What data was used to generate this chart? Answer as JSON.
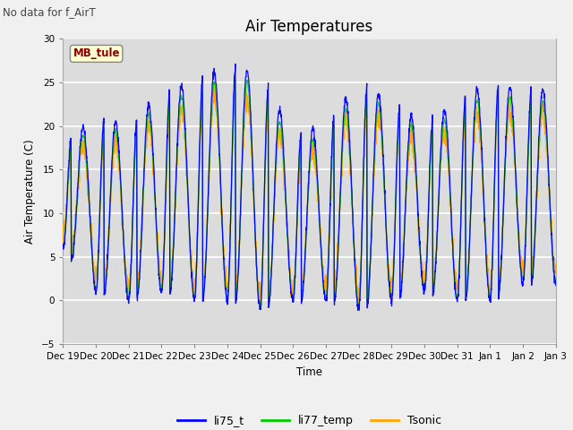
{
  "title": "Air Temperatures",
  "ylabel": "Air Temperature (C)",
  "xlabel": "Time",
  "suptitle": "No data for f_AirT",
  "ylim": [
    -5,
    30
  ],
  "yticks": [
    -5,
    0,
    5,
    10,
    15,
    20,
    25,
    30
  ],
  "line_colors": {
    "li75_t": "#0000ff",
    "li77_temp": "#00cc00",
    "Tsonic": "#ffa500"
  },
  "legend_labels": [
    "li75_t",
    "li77_temp",
    "Tsonic"
  ],
  "num_days": 15,
  "xtick_labels": [
    "Dec 19",
    "Dec 20",
    "Dec 21",
    "Dec 22",
    "Dec 23",
    "Dec 24",
    "Dec 25",
    "Dec 26",
    "Dec 27",
    "Dec 28",
    "Dec 29",
    "Dec 30",
    "Dec 31",
    "Jan 1",
    "Jan 2",
    "Jan 3"
  ],
  "background_color": "#dcdcdc",
  "grid_color": "#ffffff",
  "font_size": 9,
  "title_font_size": 12,
  "day_max_temps": [
    18,
    21,
    20,
    24,
    25,
    27,
    26,
    19,
    20,
    25,
    23,
    20,
    23,
    25,
    24
  ],
  "day_min_temps": [
    6,
    1,
    0,
    1,
    0,
    0,
    -1,
    0,
    0,
    -1,
    0,
    1,
    0,
    0,
    2
  ]
}
